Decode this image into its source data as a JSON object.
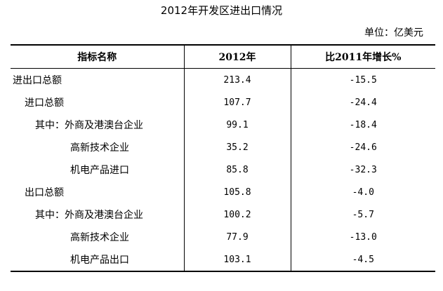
{
  "header": {
    "title": "2012年开发区进出口情况",
    "unit": "单位：亿美元"
  },
  "table": {
    "columns": [
      "指标名称",
      "2012年",
      "比2011年增长%"
    ],
    "rows": [
      [
        "进出口总额",
        "213.4",
        "-15.5"
      ],
      [
        "进口总额",
        "107.7",
        "-24.4"
      ],
      [
        "其中：外商及港澳台企业",
        "99.1",
        "-18.4"
      ],
      [
        "高新技术企业",
        "35.2",
        "-24.6"
      ],
      [
        "机电产品进口",
        "85.8",
        "-32.3"
      ],
      [
        "出口总额",
        "105.8",
        "-4.0"
      ],
      [
        "其中：外商及港澳台企业",
        "100.2",
        "-5.7"
      ],
      [
        "高新技术企业",
        "77.9",
        "-13.0"
      ],
      [
        "机电产品出口",
        "103.1",
        "-4.5"
      ]
    ]
  }
}
